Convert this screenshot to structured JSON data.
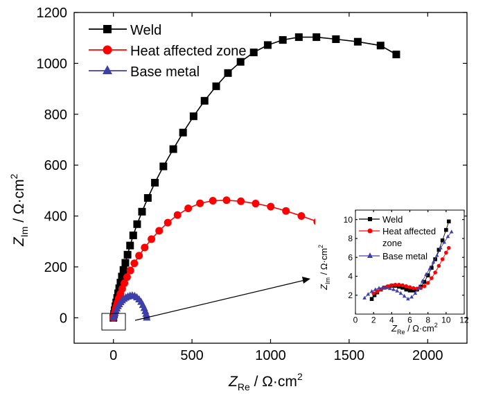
{
  "chart_data": [
    {
      "type": "scatter",
      "title": "",
      "xlabel": "Z",
      "xlabel_sub": "Re",
      "xlabel_unit": " / Ω·cm",
      "xlabel_sup": "2",
      "ylabel": "Z",
      "ylabel_sub": "Im",
      "ylabel_unit": " / Ω·cm",
      "ylabel_sup": "2",
      "xlim": [
        -250,
        2250
      ],
      "ylim": [
        -100,
        1200
      ],
      "xticks": [
        0,
        500,
        1000,
        1500,
        2000
      ],
      "yticks": [
        0,
        200,
        400,
        600,
        800,
        1000,
        1200
      ],
      "legend": "top-left",
      "series": [
        {
          "name": "Weld",
          "marker": "square",
          "color": "#000000",
          "x": [
            0,
            4,
            8,
            13,
            18,
            24,
            30,
            37,
            45,
            54,
            64,
            76,
            90,
            106,
            126,
            151,
            182,
            219,
            264,
            318,
            381,
            443,
            510,
            580,
            654,
            729,
            809,
            893,
            982,
            1078,
            1180,
            1292,
            1416,
            1555,
            1700,
            1800
          ],
          "y": [
            0,
            15,
            30,
            45,
            60,
            78,
            96,
            116,
            138,
            162,
            188,
            216,
            248,
            284,
            324,
            368,
            417,
            471,
            531,
            595,
            663,
            728,
            792,
            853,
            910,
            962,
            1006,
            1043,
            1072,
            1092,
            1103,
            1103,
            1095,
            1085,
            1070,
            1035
          ]
        },
        {
          "name": "Heat affected zone",
          "marker": "circle",
          "color": "#ff0000",
          "x": [
            0,
            4,
            8,
            13,
            19,
            26,
            34,
            44,
            56,
            70,
            87,
            108,
            133,
            163,
            199,
            242,
            291,
            346,
            408,
            476,
            551,
            633,
            720,
            811,
            905,
            1001,
            1098,
            1196,
            1297
          ],
          "y": [
            0,
            10,
            20,
            32,
            45,
            60,
            76,
            94,
            114,
            136,
            160,
            186,
            214,
            244,
            276,
            309,
            342,
            374,
            404,
            430,
            450,
            460,
            462,
            458,
            449,
            437,
            420,
            400,
            378
          ]
        },
        {
          "name": "Base metal",
          "marker": "triangle",
          "color": "#3f3fa8",
          "x": [
            0,
            5,
            10,
            16,
            22,
            29,
            37,
            46,
            56,
            67,
            79,
            92,
            106,
            120,
            135,
            149,
            163,
            176,
            187,
            196,
            203,
            208,
            211,
            212
          ],
          "y": [
            0,
            9,
            18,
            27,
            36,
            45,
            53,
            61,
            68,
            74,
            79,
            83,
            86,
            87,
            85,
            80,
            72,
            62,
            50,
            38,
            26,
            15,
            6,
            0
          ]
        }
      ]
    },
    {
      "type": "scatter",
      "title": "inset",
      "xlabel": "Z",
      "xlabel_sub": "Re",
      "xlabel_unit": " / Ω·cm",
      "xlabel_sup": "2",
      "ylabel": "Z",
      "ylabel_sub": "Im",
      "ylabel_unit": " / Ω·cm",
      "ylabel_sup": "2",
      "xlim": [
        0,
        12
      ],
      "ylim": [
        0,
        11
      ],
      "xticks": [
        0,
        2,
        4,
        6,
        8,
        10,
        12
      ],
      "yticks": [
        2,
        4,
        6,
        8,
        10
      ],
      "legend": "top-left",
      "legend_labels": [
        "Weld",
        "Heat affected",
        "zone",
        "Base metal"
      ],
      "series": [
        {
          "name": "Weld",
          "marker": "square",
          "color": "#000000",
          "x": [
            1.8,
            2.1,
            2.4,
            2.8,
            3.2,
            3.6,
            4.0,
            4.4,
            4.8,
            5.2,
            5.6,
            6.0,
            6.4,
            6.8,
            7.2,
            7.6,
            8.0,
            8.4,
            8.8,
            9.2,
            9.6,
            10.0,
            10.3
          ],
          "y": [
            1.6,
            2.0,
            2.3,
            2.6,
            2.8,
            2.9,
            3.0,
            3.0,
            2.9,
            2.8,
            2.6,
            2.5,
            2.5,
            2.6,
            2.9,
            3.4,
            4.1,
            4.9,
            5.8,
            6.8,
            7.8,
            8.9,
            9.8
          ]
        },
        {
          "name": "Heat affected zone",
          "marker": "circle",
          "color": "#ff0000",
          "x": [
            2.0,
            2.4,
            2.8,
            3.2,
            3.6,
            4.0,
            4.4,
            4.8,
            5.2,
            5.6,
            6.0,
            6.4,
            6.8,
            7.2,
            7.6,
            8.0,
            8.4,
            8.8,
            9.2,
            9.6,
            10.0,
            10.3
          ],
          "y": [
            2.2,
            2.4,
            2.6,
            2.8,
            2.95,
            3.05,
            3.1,
            3.1,
            3.05,
            2.95,
            2.85,
            2.75,
            2.7,
            2.75,
            2.95,
            3.3,
            3.8,
            4.4,
            5.1,
            5.8,
            6.5,
            7.0
          ]
        },
        {
          "name": "Base metal",
          "marker": "triangle",
          "color": "#3f3fa8",
          "x": [
            1.0,
            1.4,
            1.8,
            2.2,
            2.6,
            3.0,
            3.4,
            3.8,
            4.2,
            4.6,
            5.0,
            5.4,
            5.8,
            6.2,
            6.6,
            7.0,
            7.4,
            7.8,
            8.2,
            8.6,
            9.0,
            9.4,
            9.8,
            10.2,
            10.6
          ],
          "y": [
            1.7,
            2.1,
            2.4,
            2.6,
            2.75,
            2.8,
            2.8,
            2.7,
            2.6,
            2.45,
            2.2,
            1.9,
            1.6,
            1.8,
            2.2,
            2.8,
            3.5,
            4.2,
            4.8,
            5.5,
            6.2,
            7.0,
            7.6,
            8.2,
            8.7
          ]
        }
      ]
    }
  ]
}
